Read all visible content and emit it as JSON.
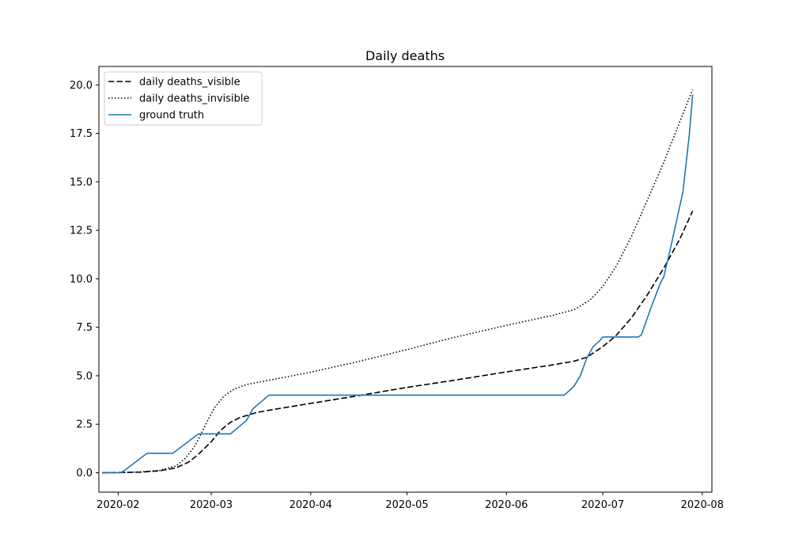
{
  "chart_data": {
    "type": "line",
    "title": "Daily deaths",
    "xlabel": "",
    "ylabel": "",
    "x_axis_type": "date",
    "xlim": [
      "2020-01-26",
      "2020-08-04"
    ],
    "ylim": [
      -1.0,
      20.95
    ],
    "x_ticks": [
      "2020-02-01",
      "2020-03-01",
      "2020-04-01",
      "2020-05-01",
      "2020-06-01",
      "2020-07-01",
      "2020-08-01"
    ],
    "x_tick_labels": [
      "2020-02",
      "2020-03",
      "2020-04",
      "2020-05",
      "2020-06",
      "2020-07",
      "2020-08"
    ],
    "y_ticks": [
      0,
      2.5,
      5,
      7.5,
      10,
      12.5,
      15,
      17.5,
      20
    ],
    "y_tick_labels": [
      "0.0",
      "2.5",
      "5.0",
      "7.5",
      "10.0",
      "12.5",
      "15.0",
      "17.5",
      "20.0"
    ],
    "grid": false,
    "legend_position": "top-left",
    "series": [
      {
        "name": "daily deaths_visible",
        "color": "#000000",
        "style": "dashed",
        "points": [
          [
            "2020-01-27",
            0.0
          ],
          [
            "2020-02-01",
            0.01
          ],
          [
            "2020-02-08",
            0.03
          ],
          [
            "2020-02-14",
            0.1
          ],
          [
            "2020-02-19",
            0.25
          ],
          [
            "2020-02-23",
            0.55
          ],
          [
            "2020-02-26",
            0.95
          ],
          [
            "2020-03-01",
            1.6
          ],
          [
            "2020-03-04",
            2.2
          ],
          [
            "2020-03-07",
            2.6
          ],
          [
            "2020-03-10",
            2.85
          ],
          [
            "2020-03-15",
            3.1
          ],
          [
            "2020-03-20",
            3.25
          ],
          [
            "2020-03-31",
            3.55
          ],
          [
            "2020-04-15",
            3.95
          ],
          [
            "2020-05-01",
            4.4
          ],
          [
            "2020-05-15",
            4.75
          ],
          [
            "2020-06-01",
            5.2
          ],
          [
            "2020-06-15",
            5.55
          ],
          [
            "2020-06-22",
            5.75
          ],
          [
            "2020-06-26",
            5.95
          ],
          [
            "2020-07-01",
            6.5
          ],
          [
            "2020-07-05",
            7.05
          ],
          [
            "2020-07-10",
            8.0
          ],
          [
            "2020-07-15",
            9.2
          ],
          [
            "2020-07-20",
            10.55
          ],
          [
            "2020-07-25",
            12.05
          ],
          [
            "2020-07-29",
            13.5
          ]
        ]
      },
      {
        "name": "daily deaths_invisible",
        "color": "#000000",
        "style": "dotted",
        "points": [
          [
            "2020-01-27",
            0.0
          ],
          [
            "2020-02-01",
            0.01
          ],
          [
            "2020-02-08",
            0.04
          ],
          [
            "2020-02-14",
            0.12
          ],
          [
            "2020-02-19",
            0.35
          ],
          [
            "2020-02-22",
            0.75
          ],
          [
            "2020-02-25",
            1.4
          ],
          [
            "2020-02-28",
            2.4
          ],
          [
            "2020-03-02",
            3.35
          ],
          [
            "2020-03-05",
            3.95
          ],
          [
            "2020-03-08",
            4.3
          ],
          [
            "2020-03-12",
            4.55
          ],
          [
            "2020-03-20",
            4.8
          ],
          [
            "2020-03-31",
            5.15
          ],
          [
            "2020-04-15",
            5.7
          ],
          [
            "2020-05-01",
            6.35
          ],
          [
            "2020-05-15",
            6.95
          ],
          [
            "2020-06-01",
            7.6
          ],
          [
            "2020-06-15",
            8.1
          ],
          [
            "2020-06-22",
            8.4
          ],
          [
            "2020-06-27",
            8.9
          ],
          [
            "2020-07-01",
            9.6
          ],
          [
            "2020-07-05",
            10.6
          ],
          [
            "2020-07-10",
            12.2
          ],
          [
            "2020-07-15",
            14.1
          ],
          [
            "2020-07-20",
            16.0
          ],
          [
            "2020-07-25",
            18.1
          ],
          [
            "2020-07-29",
            19.75
          ]
        ]
      },
      {
        "name": "ground truth",
        "color": "#1f77b4",
        "style": "solid",
        "points": [
          [
            "2020-01-27",
            0
          ],
          [
            "2020-02-02",
            0
          ],
          [
            "2020-02-10",
            1
          ],
          [
            "2020-02-18",
            1
          ],
          [
            "2020-02-26",
            2
          ],
          [
            "2020-03-07",
            2
          ],
          [
            "2020-03-12",
            2.7
          ],
          [
            "2020-03-14",
            3.3
          ],
          [
            "2020-03-19",
            4
          ],
          [
            "2020-06-19",
            4
          ],
          [
            "2020-06-22",
            4.45
          ],
          [
            "2020-06-24",
            5.0
          ],
          [
            "2020-06-26",
            5.9
          ],
          [
            "2020-06-28",
            6.5
          ],
          [
            "2020-06-30",
            6.8
          ],
          [
            "2020-07-01",
            7.0
          ],
          [
            "2020-07-12",
            7.0
          ],
          [
            "2020-07-13",
            7.1
          ],
          [
            "2020-07-16",
            8.5
          ],
          [
            "2020-07-19",
            9.8
          ],
          [
            "2020-07-20",
            10.1
          ],
          [
            "2020-07-22",
            11.5
          ],
          [
            "2020-07-24",
            13.0
          ],
          [
            "2020-07-26",
            14.5
          ],
          [
            "2020-07-28",
            17.5
          ],
          [
            "2020-07-29",
            19.5
          ]
        ]
      }
    ]
  }
}
